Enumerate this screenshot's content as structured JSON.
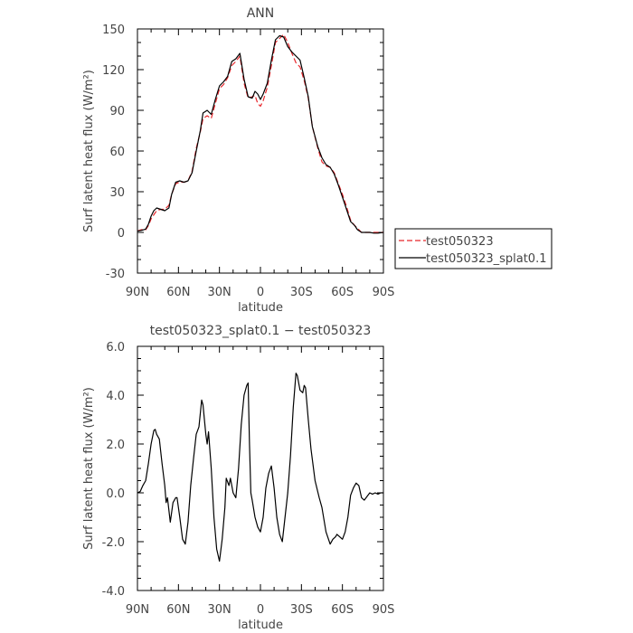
{
  "chart_data": [
    {
      "type": "line",
      "title": "ANN",
      "xlabel": "latitude",
      "ylabel": "Surf latent heat flux (W/m²)",
      "xlim": [
        90,
        -90
      ],
      "ylim": [
        -30,
        150
      ],
      "x_ticks": [
        {
          "value": 90,
          "label": "90N"
        },
        {
          "value": 60,
          "label": "60N"
        },
        {
          "value": 30,
          "label": "30N"
        },
        {
          "value": 0,
          "label": "0"
        },
        {
          "value": -30,
          "label": "30S"
        },
        {
          "value": -60,
          "label": "60S"
        },
        {
          "value": -90,
          "label": "90S"
        }
      ],
      "y_ticks": [
        -30,
        0,
        30,
        60,
        90,
        120,
        150
      ],
      "legend": {
        "placement": "right"
      },
      "series": [
        {
          "name": "test050323",
          "color": "#e8262b",
          "style": "dashed",
          "points": [
            [
              90,
              1
            ],
            [
              87,
              2
            ],
            [
              84,
              2
            ],
            [
              82,
              5
            ],
            [
              80,
              10
            ],
            [
              78,
              13
            ],
            [
              76,
              16
            ],
            [
              73,
              17
            ],
            [
              70,
              17
            ],
            [
              67,
              20
            ],
            [
              65,
              28
            ],
            [
              62,
              36
            ],
            [
              59,
              37
            ],
            [
              56,
              37
            ],
            [
              53,
              38
            ],
            [
              50,
              45
            ],
            [
              47,
              62
            ],
            [
              44,
              74
            ],
            [
              42,
              84
            ],
            [
              39,
              86
            ],
            [
              36,
              84
            ],
            [
              33,
              95
            ],
            [
              30,
              106
            ],
            [
              27,
              109
            ],
            [
              24,
              114
            ],
            [
              21,
              123
            ],
            [
              18,
              126
            ],
            [
              15,
              130
            ],
            [
              12,
              110
            ],
            [
              9,
              99
            ],
            [
              6,
              100
            ],
            [
              4,
              101
            ],
            [
              2,
              95
            ],
            [
              0,
              93
            ],
            [
              -2,
              97
            ],
            [
              -5,
              107
            ],
            [
              -8,
              123
            ],
            [
              -11,
              140
            ],
            [
              -14,
              143
            ],
            [
              -17,
              146
            ],
            [
              -20,
              140
            ],
            [
              -23,
              132
            ],
            [
              -26,
              125
            ],
            [
              -29,
              122
            ],
            [
              -32,
              112
            ],
            [
              -35,
              99
            ],
            [
              -38,
              78
            ],
            [
              -42,
              62
            ],
            [
              -45,
              52
            ],
            [
              -48,
              49
            ],
            [
              -51,
              48
            ],
            [
              -54,
              44
            ],
            [
              -57,
              36
            ],
            [
              -60,
              28
            ],
            [
              -63,
              19
            ],
            [
              -66,
              9
            ],
            [
              -69,
              5
            ],
            [
              -71,
              3
            ],
            [
              -74,
              0
            ],
            [
              -77,
              0
            ],
            [
              -80,
              0
            ],
            [
              -83,
              0
            ],
            [
              -86,
              0
            ],
            [
              -90,
              0
            ]
          ]
        },
        {
          "name": "test050323_splat0.1",
          "color": "#000000",
          "style": "solid",
          "points": [
            [
              90,
              1
            ],
            [
              87,
              1.5
            ],
            [
              84,
              2.5
            ],
            [
              82,
              6
            ],
            [
              80,
              12
            ],
            [
              78,
              16
            ],
            [
              76,
              18
            ],
            [
              73,
              17
            ],
            [
              70,
              16
            ],
            [
              67,
              18
            ],
            [
              65,
              28
            ],
            [
              62,
              37
            ],
            [
              59,
              38
            ],
            [
              56,
              37
            ],
            [
              53,
              38
            ],
            [
              50,
              44
            ],
            [
              47,
              60
            ],
            [
              44,
              75
            ],
            [
              42,
              88
            ],
            [
              39,
              90
            ],
            [
              36,
              87
            ],
            [
              33,
              98
            ],
            [
              30,
              108
            ],
            [
              27,
              111
            ],
            [
              24,
              115
            ],
            [
              21,
              126
            ],
            [
              18,
              128
            ],
            [
              15,
              132
            ],
            [
              12,
              113
            ],
            [
              9,
              100
            ],
            [
              6,
              99
            ],
            [
              4,
              104
            ],
            [
              2,
              102
            ],
            [
              0,
              98
            ],
            [
              -2,
              102
            ],
            [
              -5,
              110
            ],
            [
              -8,
              127
            ],
            [
              -11,
              142
            ],
            [
              -14,
              145
            ],
            [
              -17,
              144
            ],
            [
              -20,
              137
            ],
            [
              -23,
              133
            ],
            [
              -26,
              130
            ],
            [
              -29,
              127
            ],
            [
              -32,
              114
            ],
            [
              -35,
              100
            ],
            [
              -38,
              78
            ],
            [
              -42,
              63
            ],
            [
              -45,
              55
            ],
            [
              -48,
              50
            ],
            [
              -51,
              48
            ],
            [
              -54,
              43
            ],
            [
              -57,
              35
            ],
            [
              -60,
              26
            ],
            [
              -63,
              17
            ],
            [
              -66,
              8
            ],
            [
              -69,
              5
            ],
            [
              -71,
              2
            ],
            [
              -74,
              0
            ],
            [
              -77,
              0
            ],
            [
              -80,
              0
            ],
            [
              -83,
              -0.5
            ],
            [
              -86,
              -0.5
            ],
            [
              -90,
              0
            ]
          ]
        }
      ]
    },
    {
      "type": "line",
      "title": "test050323_splat0.1 − test050323",
      "xlabel": "latitude",
      "ylabel": "Surf latent heat flux (W/m²)",
      "xlim": [
        90,
        -90
      ],
      "ylim": [
        -4,
        6
      ],
      "x_ticks": [
        {
          "value": 90,
          "label": "90N"
        },
        {
          "value": 60,
          "label": "60N"
        },
        {
          "value": 30,
          "label": "30N"
        },
        {
          "value": 0,
          "label": "0"
        },
        {
          "value": -30,
          "label": "30S"
        },
        {
          "value": -60,
          "label": "60S"
        },
        {
          "value": -90,
          "label": "90S"
        }
      ],
      "y_ticks": [
        {
          "value": -4,
          "label": "-4.0"
        },
        {
          "value": -2,
          "label": "-2.0"
        },
        {
          "value": 0,
          "label": "0.0"
        },
        {
          "value": 2,
          "label": "2.0"
        },
        {
          "value": 4,
          "label": "4.0"
        },
        {
          "value": 6,
          "label": "6.0"
        }
      ],
      "series": [
        {
          "color": "#000000",
          "style": "solid",
          "points": [
            [
              90,
              0
            ],
            [
              88,
              0.05
            ],
            [
              86,
              0.3
            ],
            [
              84,
              0.5
            ],
            [
              82,
              1.2
            ],
            [
              80,
              2.0
            ],
            [
              78,
              2.55
            ],
            [
              77,
              2.6
            ],
            [
              76,
              2.4
            ],
            [
              74,
              2.2
            ],
            [
              72,
              1.2
            ],
            [
              70,
              0.3
            ],
            [
              69,
              -0.4
            ],
            [
              68,
              -0.2
            ],
            [
              66,
              -1.2
            ],
            [
              64,
              -0.4
            ],
            [
              62,
              -0.2
            ],
            [
              61,
              -0.2
            ],
            [
              59,
              -1.0
            ],
            [
              57,
              -1.9
            ],
            [
              55,
              -2.1
            ],
            [
              53,
              -1.2
            ],
            [
              51,
              0.3
            ],
            [
              49,
              1.4
            ],
            [
              47,
              2.4
            ],
            [
              45,
              2.7
            ],
            [
              43,
              3.8
            ],
            [
              42,
              3.6
            ],
            [
              40,
              2.4
            ],
            [
              39,
              2.0
            ],
            [
              38,
              2.5
            ],
            [
              36,
              1.0
            ],
            [
              34,
              -1.0
            ],
            [
              32,
              -2.3
            ],
            [
              30,
              -2.8
            ],
            [
              28,
              -1.9
            ],
            [
              26,
              -0.6
            ],
            [
              25,
              0.6
            ],
            [
              23,
              0.3
            ],
            [
              22,
              0.6
            ],
            [
              20,
              0.0
            ],
            [
              18,
              -0.2
            ],
            [
              16,
              1.0
            ],
            [
              14,
              2.8
            ],
            [
              12,
              4.0
            ],
            [
              10,
              4.4
            ],
            [
              9,
              4.5
            ],
            [
              8,
              2.0
            ],
            [
              7,
              0.0
            ],
            [
              6,
              -0.3
            ],
            [
              4,
              -1.0
            ],
            [
              2,
              -1.4
            ],
            [
              0,
              -1.6
            ],
            [
              -2,
              -1.0
            ],
            [
              -4,
              0.2
            ],
            [
              -6,
              0.8
            ],
            [
              -8,
              1.1
            ],
            [
              -10,
              0.2
            ],
            [
              -12,
              -1.0
            ],
            [
              -14,
              -1.7
            ],
            [
              -16,
              -2.0
            ],
            [
              -18,
              -1.0
            ],
            [
              -20,
              0.0
            ],
            [
              -22,
              1.5
            ],
            [
              -24,
              3.5
            ],
            [
              -26,
              4.9
            ],
            [
              -27,
              4.8
            ],
            [
              -29,
              4.2
            ],
            [
              -31,
              4.1
            ],
            [
              -32,
              4.4
            ],
            [
              -33,
              4.3
            ],
            [
              -35,
              3.0
            ],
            [
              -37,
              1.8
            ],
            [
              -40,
              0.5
            ],
            [
              -43,
              -0.2
            ],
            [
              -45,
              -0.6
            ],
            [
              -48,
              -1.6
            ],
            [
              -51,
              -2.1
            ],
            [
              -53,
              -1.9
            ],
            [
              -55,
              -1.8
            ],
            [
              -56,
              -1.7
            ],
            [
              -58,
              -1.8
            ],
            [
              -60,
              -1.9
            ],
            [
              -62,
              -1.6
            ],
            [
              -64,
              -1.0
            ],
            [
              -66,
              -0.1
            ],
            [
              -68,
              0.2
            ],
            [
              -70,
              0.4
            ],
            [
              -72,
              0.3
            ],
            [
              -74,
              -0.2
            ],
            [
              -76,
              -0.3
            ],
            [
              -78,
              -0.15
            ],
            [
              -80,
              0.0
            ],
            [
              -82,
              -0.05
            ],
            [
              -84,
              0.0
            ],
            [
              -86,
              -0.05
            ],
            [
              -88,
              0.0
            ],
            [
              -90,
              0.0
            ]
          ]
        }
      ]
    }
  ]
}
